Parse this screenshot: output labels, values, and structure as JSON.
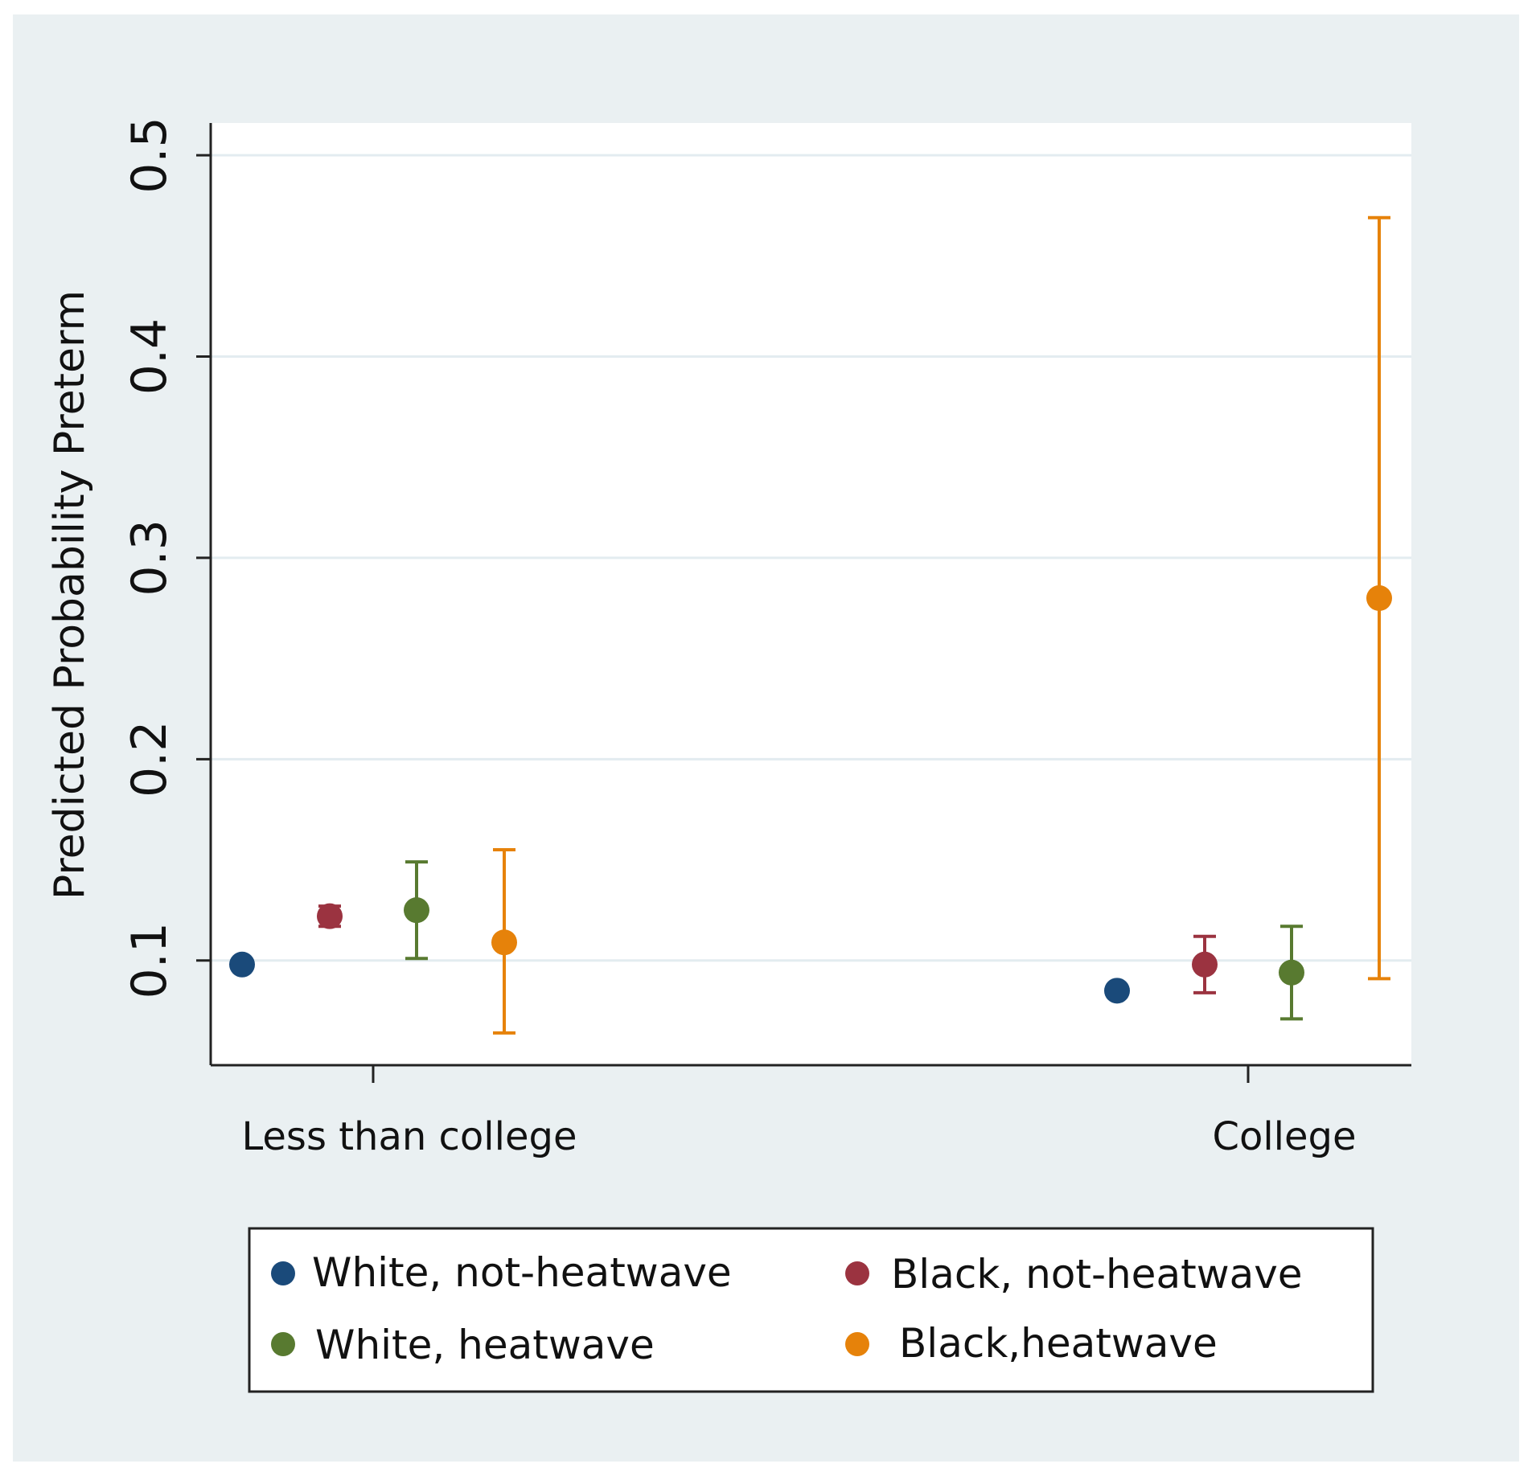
{
  "chart_data": {
    "type": "scatter",
    "subtype": "point-with-error-bars",
    "title": "",
    "xlabel": "",
    "ylabel": "Predicted Probability Preterm",
    "categories": [
      "Less than college",
      "College"
    ],
    "ylim": [
      0.048,
      0.516
    ],
    "yticks": [
      0.1,
      0.2,
      0.3,
      0.4,
      0.5
    ],
    "ytick_labels": [
      "0.1",
      "0.2",
      "0.3",
      "0.4",
      "0.5"
    ],
    "grid": true,
    "legend_position": "bottom",
    "series": [
      {
        "name": "White, not-heatwave",
        "color": "#1a4a7a",
        "values": [
          0.098,
          0.085
        ],
        "ci_low": [
          null,
          null
        ],
        "ci_high": [
          null,
          null
        ]
      },
      {
        "name": "Black, not-heatwave",
        "color": "#9b3340",
        "values": [
          0.122,
          0.098
        ],
        "ci_low": [
          0.117,
          0.084
        ],
        "ci_high": [
          0.127,
          0.112
        ]
      },
      {
        "name": "White, heatwave",
        "color": "#587a30",
        "values": [
          0.125,
          0.094
        ],
        "ci_low": [
          0.101,
          0.071
        ],
        "ci_high": [
          0.149,
          0.117
        ]
      },
      {
        "name": "Black,heatwave",
        "color": "#e6820a",
        "values": [
          0.109,
          0.28
        ],
        "ci_low": [
          0.064,
          0.091
        ],
        "ci_high": [
          0.155,
          0.469
        ]
      }
    ]
  },
  "colors": {
    "outer_background": "#eaf0f2",
    "plot_background": "#ffffff",
    "grid": "#e3ecf0",
    "axis": "#222222"
  }
}
